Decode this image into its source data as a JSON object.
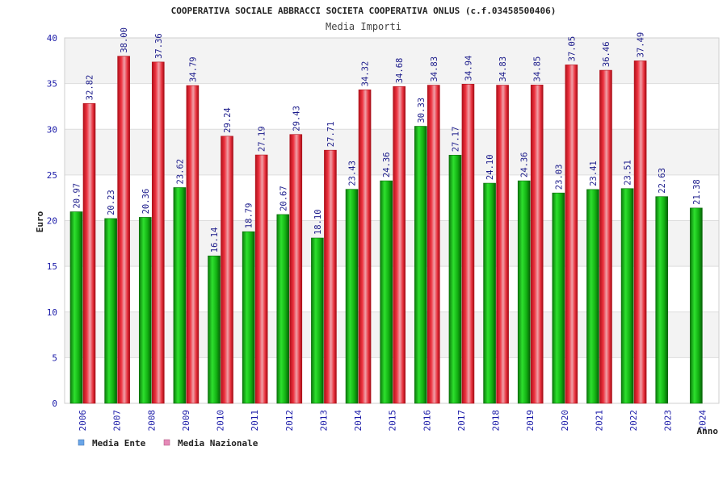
{
  "chart_data": {
    "type": "bar",
    "title": "COOPERATIVA SOCIALE ABBRACCI SOCIETA COOPERATIVA ONLUS (c.f.03458500406)",
    "subtitle": "Media Importi",
    "xlabel": "Anno",
    "ylabel": "Euro",
    "ylim": [
      0,
      40
    ],
    "yticks": [
      "0",
      "5",
      "10",
      "15",
      "20",
      "25",
      "30",
      "35",
      "40"
    ],
    "categories": [
      "2006",
      "2007",
      "2008",
      "2009",
      "2010",
      "2011",
      "2012",
      "2013",
      "2014",
      "2015",
      "2016",
      "2017",
      "2018",
      "2019",
      "2020",
      "2021",
      "2022",
      "2023",
      "2024"
    ],
    "series": [
      {
        "name": "Media Ente",
        "color": "#11b511",
        "legend_color": "#6aa6e8",
        "values": [
          20.97,
          20.23,
          20.36,
          23.62,
          16.14,
          18.79,
          20.67,
          18.1,
          23.43,
          24.36,
          30.33,
          27.17,
          24.1,
          24.36,
          23.03,
          23.41,
          23.51,
          22.63,
          21.38
        ],
        "labels": [
          "20.97",
          "20.23",
          "20.36",
          "23.62",
          "16.14",
          "18.79",
          "20.67",
          "18.10",
          "23.43",
          "24.36",
          "30.33",
          "27.17",
          "24.10",
          "24.36",
          "23.03",
          "23.41",
          "23.51",
          "22.63",
          "21.38"
        ]
      },
      {
        "name": "Media Nazionale",
        "color": "#e6232f",
        "legend_color": "#e68ab8",
        "values": [
          32.82,
          38.0,
          37.36,
          34.79,
          29.24,
          27.19,
          29.43,
          27.71,
          34.32,
          34.68,
          34.83,
          34.94,
          34.83,
          34.85,
          37.05,
          36.46,
          37.49,
          null,
          null
        ],
        "labels": [
          "32.82",
          "38.00",
          "37.36",
          "34.79",
          "29.24",
          "27.19",
          "29.43",
          "27.71",
          "34.32",
          "34.68",
          "34.83",
          "34.94",
          "34.83",
          "34.85",
          "37.05",
          "36.46",
          "37.49",
          null,
          null
        ]
      }
    ],
    "grid": true,
    "legend_position": "bottom-left"
  }
}
